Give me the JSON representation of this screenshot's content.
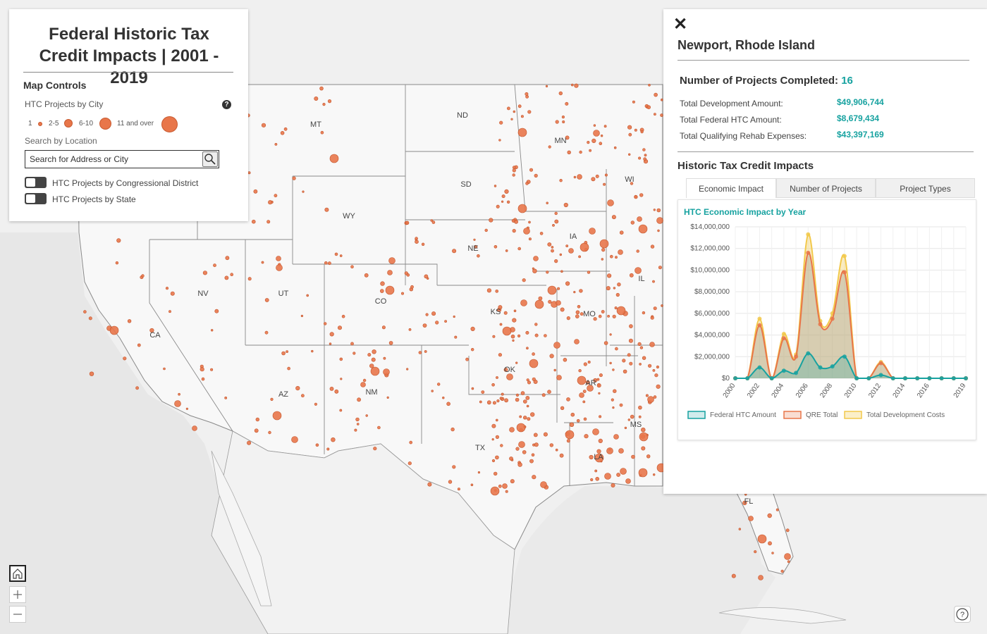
{
  "controls": {
    "title": "Federal Historic Tax Credit Impacts | 2001 - 2019",
    "section_title": "Map Controls",
    "legend_title": "HTC Projects by City",
    "legend_items": [
      "1",
      "2-5",
      "6-10",
      "11 and over"
    ],
    "search_label": "Search by Location",
    "search_placeholder": "Search for Address or City",
    "toggle_district": "HTC Projects by Congressional District",
    "toggle_state": "HTC Projects by State"
  },
  "info": {
    "city": "Newport, Rhode Island",
    "completed_label": "Number of Projects Completed:",
    "completed_value": "16",
    "stats": [
      {
        "label": "Total Development Amount:",
        "value": "$49,906,744"
      },
      {
        "label": "Total Federal HTC Amount:",
        "value": "$8,679,434"
      },
      {
        "label": "Total Qualifying Rehab Expenses:",
        "value": "$43,397,169"
      }
    ],
    "impacts_title": "Historic Tax Credit Impacts",
    "tabs": [
      "Economic Impact",
      "Number of Projects",
      "Project Types"
    ],
    "active_tab": "Economic Impact"
  },
  "map": {
    "state_labels": [
      "MT",
      "ND",
      "MN",
      "WI",
      "SD",
      "WY",
      "IA",
      "NE",
      "IL",
      "NV",
      "UT",
      "CO",
      "KS",
      "MO",
      "CA",
      "OK",
      "AR",
      "AZ",
      "NM",
      "MS",
      "TX",
      "LA",
      "FL"
    ],
    "dot_color": "#e8764a"
  },
  "chart_data": {
    "type": "area",
    "title": "HTC Economic Impact by Year",
    "x": [
      2000,
      2001,
      2002,
      2003,
      2004,
      2005,
      2006,
      2007,
      2008,
      2009,
      2010,
      2011,
      2012,
      2013,
      2014,
      2015,
      2016,
      2017,
      2018,
      2019
    ],
    "x_tick_labels": [
      "2000",
      "2002",
      "2004",
      "2006",
      "2008",
      "2010",
      "2012",
      "2014",
      "2016",
      "2019"
    ],
    "ylim": [
      0,
      14000000
    ],
    "y_tick_labels": [
      "$0",
      "$2,000,000",
      "$4,000,000",
      "$6,000,000",
      "$8,000,000",
      "$10,000,000",
      "$12,000,000",
      "$14,000,000"
    ],
    "series": [
      {
        "name": "Federal HTC Amount",
        "color": "#17a2a0",
        "values": [
          0,
          0,
          1000000,
          0,
          700000,
          500000,
          2300000,
          1000000,
          1100000,
          2000000,
          0,
          0,
          300000,
          0,
          0,
          0,
          0,
          0,
          0,
          0
        ]
      },
      {
        "name": "QRE Total",
        "color": "#e8764a",
        "values": [
          0,
          0,
          4900000,
          0,
          3700000,
          2000000,
          11600000,
          5000000,
          5500000,
          9800000,
          0,
          0,
          1400000,
          0,
          0,
          0,
          0,
          0,
          0,
          0
        ]
      },
      {
        "name": "Total Development Costs",
        "color": "#f2c94c",
        "values": [
          0,
          0,
          5500000,
          0,
          4100000,
          2200000,
          13300000,
          5300000,
          6000000,
          11300000,
          0,
          0,
          1500000,
          0,
          0,
          0,
          0,
          0,
          0,
          0
        ]
      }
    ],
    "legend_position": "bottom"
  }
}
